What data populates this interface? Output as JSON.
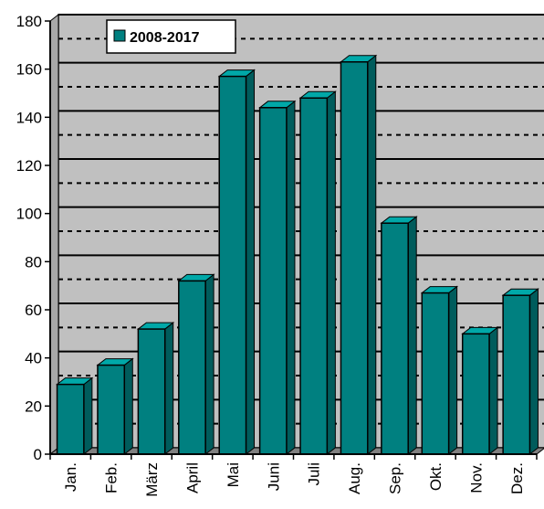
{
  "chart_data": {
    "type": "bar",
    "categories": [
      "Jan.",
      "Feb.",
      "März",
      "April",
      "Mai",
      "Juni",
      "Juli",
      "Aug.",
      "Sep.",
      "Okt.",
      "Nov.",
      "Dez."
    ],
    "series": [
      {
        "name": "2008-2017",
        "values": [
          29,
          37,
          52,
          72,
          157,
          144,
          148,
          163,
          96,
          67,
          50,
          66
        ],
        "color": "#008080"
      }
    ],
    "ylim": [
      0,
      180
    ],
    "yticks": [
      0,
      20,
      40,
      60,
      80,
      100,
      120,
      140,
      160,
      180
    ],
    "grid": true,
    "legend_position": "top-left",
    "style": "3d-bar",
    "plot_background": "#c0c0c0"
  }
}
